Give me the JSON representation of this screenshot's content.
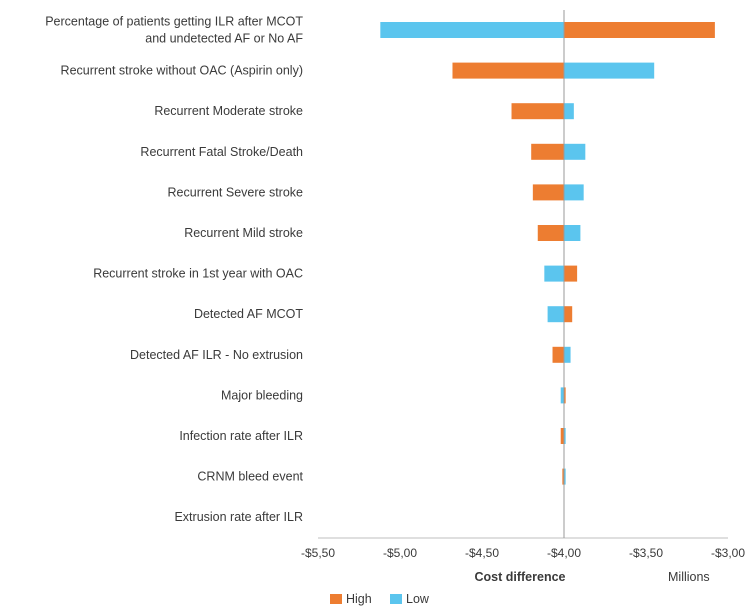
{
  "chart_data": {
    "type": "tornado",
    "xlabel": "Cost difference",
    "x_unit": "Millions",
    "xlim": [
      -5.5,
      -3.0
    ],
    "base_value": -4.0,
    "x_ticks": [
      -5.5,
      -5.0,
      -4.5,
      -4.0,
      -3.5,
      -3.0
    ],
    "x_tick_labels": [
      "-$5,50",
      "-$5,00",
      "-$4,50",
      "-$4,00",
      "-$3,50",
      "-$3,00"
    ],
    "categories": [
      "Percentage of patients getting ILR after MCOT and undetected AF or No AF",
      "Recurrent stroke without OAC (Aspirin only)",
      "Recurrent Moderate stroke",
      "Recurrent Fatal Stroke/Death",
      "Recurrent Severe stroke",
      "Recurrent Mild stroke",
      "Recurrent stroke in 1st year with OAC",
      "Detected AF MCOT",
      "Detected AF ILR - No extrusion",
      "Major bleeding",
      "Infection rate after ILR",
      "CRNM bleed event",
      "Extrusion rate after ILR"
    ],
    "series": [
      {
        "name": "High",
        "color": "#ED7D31",
        "values": [
          -3.08,
          -4.68,
          -4.32,
          -4.2,
          -4.19,
          -4.16,
          -3.92,
          -3.95,
          -4.07,
          -3.99,
          -4.02,
          -4.01,
          -4.0
        ]
      },
      {
        "name": "Low",
        "color": "#5BC5EE",
        "values": [
          -5.12,
          -3.45,
          -3.94,
          -3.87,
          -3.88,
          -3.9,
          -4.12,
          -4.1,
          -3.96,
          -4.02,
          -3.99,
          -3.99,
          -4.0
        ]
      }
    ],
    "legend": [
      "High",
      "Low"
    ],
    "legend_position": "bottom"
  }
}
